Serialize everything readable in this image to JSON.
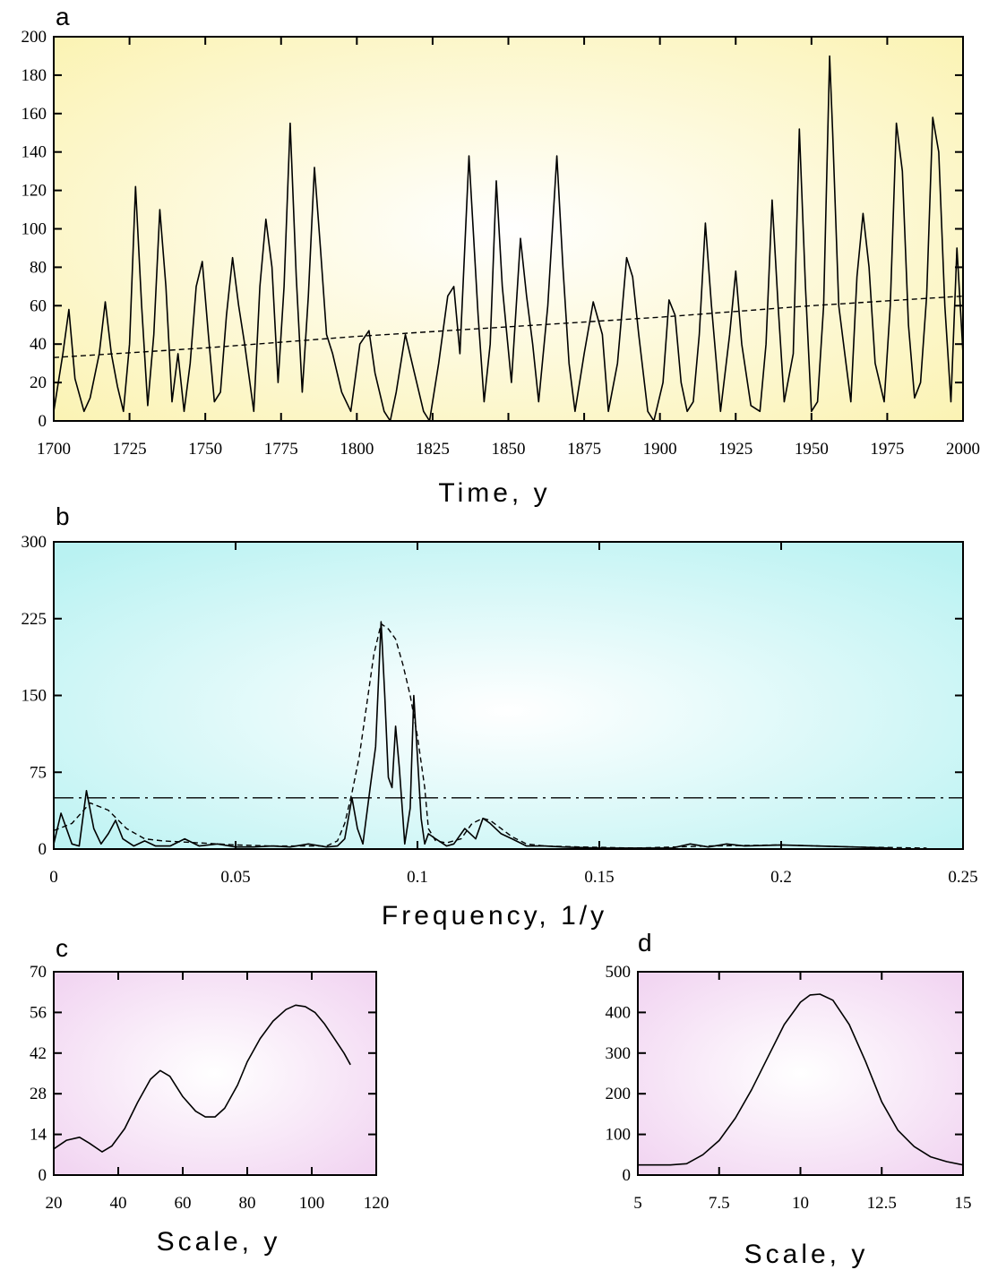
{
  "chart_data": [
    {
      "panel": "a",
      "type": "line",
      "title": "",
      "xlabel": "Time, y",
      "ylabel": "",
      "xlim": [
        1700,
        2000
      ],
      "ylim": [
        0,
        200
      ],
      "xticks": [
        1700,
        1725,
        1750,
        1775,
        1800,
        1825,
        1850,
        1875,
        1900,
        1925,
        1950,
        1975,
        2000
      ],
      "yticks": [
        0,
        20,
        40,
        60,
        80,
        100,
        120,
        140,
        160,
        180,
        200
      ],
      "background": "#fbf3b4",
      "grid": false,
      "series": [
        {
          "style": "solid",
          "x": [
            1700,
            1703,
            1705,
            1707,
            1710,
            1712,
            1715,
            1717,
            1719,
            1721,
            1723,
            1725,
            1727,
            1729,
            1731,
            1733,
            1735,
            1737,
            1739,
            1741,
            1743,
            1745,
            1747,
            1749,
            1751,
            1753,
            1755,
            1757,
            1759,
            1761,
            1763,
            1766,
            1768,
            1770,
            1772,
            1774,
            1776,
            1778,
            1780,
            1782,
            1784,
            1786,
            1788,
            1790,
            1792,
            1795,
            1798,
            1801,
            1804,
            1806,
            1809,
            1811,
            1813,
            1816,
            1819,
            1822,
            1824,
            1827,
            1830,
            1832,
            1834,
            1837,
            1840,
            1842,
            1844,
            1846,
            1848,
            1851,
            1854,
            1856,
            1858,
            1860,
            1863,
            1866,
            1868,
            1870,
            1872,
            1875,
            1878,
            1881,
            1883,
            1886,
            1889,
            1891,
            1893,
            1896,
            1898,
            1901,
            1903,
            1905,
            1907,
            1909,
            1911,
            1913,
            1915,
            1917,
            1920,
            1923,
            1925,
            1927,
            1930,
            1933,
            1935,
            1937,
            1939,
            1941,
            1944,
            1946,
            1948,
            1950,
            1952,
            1954,
            1956,
            1957,
            1959,
            1961,
            1963,
            1965,
            1967,
            1969,
            1971,
            1974,
            1976,
            1978,
            1980,
            1982,
            1984,
            1986,
            1988,
            1990,
            1992,
            1994,
            1996,
            1998,
            2000
          ],
          "y": [
            5,
            35,
            58,
            22,
            5,
            12,
            35,
            62,
            35,
            18,
            5,
            40,
            122,
            60,
            8,
            45,
            110,
            70,
            10,
            35,
            5,
            30,
            70,
            83,
            45,
            10,
            15,
            55,
            85,
            60,
            40,
            5,
            70,
            105,
            80,
            20,
            70,
            155,
            75,
            15,
            65,
            132,
            90,
            45,
            35,
            15,
            5,
            40,
            47,
            25,
            5,
            0,
            15,
            45,
            25,
            5,
            0,
            30,
            65,
            70,
            35,
            138,
            55,
            10,
            40,
            125,
            70,
            20,
            95,
            65,
            40,
            10,
            60,
            138,
            80,
            30,
            5,
            35,
            62,
            45,
            5,
            30,
            85,
            75,
            45,
            5,
            0,
            20,
            63,
            55,
            20,
            5,
            10,
            45,
            103,
            60,
            5,
            45,
            78,
            40,
            8,
            5,
            40,
            115,
            60,
            10,
            35,
            152,
            70,
            5,
            10,
            60,
            190,
            150,
            60,
            35,
            10,
            75,
            108,
            80,
            30,
            10,
            60,
            155,
            130,
            50,
            12,
            20,
            65,
            158,
            140,
            60,
            10,
            90,
            35
          ],
          "name": ""
        },
        {
          "style": "dashed",
          "x": [
            1700,
            1750,
            1800,
            1850,
            1900,
            1950,
            2000
          ],
          "y": [
            33,
            38,
            44,
            49,
            54,
            60,
            65
          ],
          "name": ""
        }
      ]
    },
    {
      "panel": "b",
      "type": "line",
      "title": "",
      "xlabel": "Frequency, 1/y",
      "ylabel": "",
      "xlim": [
        0,
        0.25
      ],
      "ylim": [
        0,
        300
      ],
      "xticks": [
        "0",
        "0.05",
        "0.1",
        "0.15",
        "0.2",
        "0.25"
      ],
      "yticks": [
        0,
        75,
        150,
        225,
        300
      ],
      "background": "#b9f2f2",
      "grid": false,
      "threshold": 50,
      "series": [
        {
          "style": "solid",
          "x": [
            0.0,
            0.002,
            0.005,
            0.007,
            0.009,
            0.011,
            0.013,
            0.015,
            0.017,
            0.019,
            0.022,
            0.025,
            0.028,
            0.032,
            0.036,
            0.04,
            0.045,
            0.05,
            0.055,
            0.06,
            0.065,
            0.07,
            0.075,
            0.078,
            0.08,
            0.082,
            0.0835,
            0.085,
            0.087,
            0.0885,
            0.09,
            0.091,
            0.092,
            0.093,
            0.094,
            0.095,
            0.096,
            0.0965,
            0.098,
            0.099,
            0.1,
            0.101,
            0.102,
            0.103,
            0.105,
            0.108,
            0.11,
            0.113,
            0.116,
            0.118,
            0.12,
            0.123,
            0.126,
            0.13,
            0.135,
            0.14,
            0.15,
            0.16,
            0.17,
            0.175,
            0.18,
            0.185,
            0.19,
            0.2,
            0.21,
            0.22,
            0.23
          ],
          "y": [
            5,
            35,
            5,
            3,
            57,
            20,
            5,
            15,
            28,
            10,
            3,
            8,
            3,
            3,
            10,
            3,
            5,
            2,
            2,
            3,
            2,
            5,
            2,
            3,
            10,
            50,
            20,
            5,
            60,
            100,
            222,
            150,
            70,
            60,
            120,
            80,
            30,
            5,
            40,
            150,
            90,
            30,
            5,
            15,
            10,
            3,
            5,
            20,
            10,
            30,
            25,
            15,
            10,
            3,
            3,
            2,
            1,
            1,
            1,
            5,
            2,
            5,
            3,
            4,
            3,
            2,
            1
          ],
          "name": ""
        },
        {
          "style": "dashed",
          "x": [
            0.0,
            0.005,
            0.01,
            0.015,
            0.02,
            0.025,
            0.03,
            0.04,
            0.05,
            0.06,
            0.07,
            0.075,
            0.078,
            0.08,
            0.082,
            0.084,
            0.086,
            0.088,
            0.09,
            0.092,
            0.094,
            0.096,
            0.098,
            0.1,
            0.102,
            0.103,
            0.105,
            0.108,
            0.112,
            0.115,
            0.118,
            0.12,
            0.123,
            0.126,
            0.13,
            0.135,
            0.145,
            0.16,
            0.18,
            0.2,
            0.22,
            0.24
          ],
          "y": [
            18,
            25,
            45,
            38,
            20,
            10,
            8,
            6,
            4,
            3,
            3,
            3,
            8,
            25,
            55,
            90,
            140,
            190,
            220,
            215,
            205,
            180,
            150,
            110,
            60,
            20,
            8,
            6,
            10,
            25,
            30,
            28,
            20,
            12,
            5,
            3,
            2,
            1,
            3,
            4,
            2,
            1
          ],
          "name": ""
        },
        {
          "style": "dash-dot",
          "x": [
            0,
            0.25
          ],
          "y": [
            50,
            50
          ],
          "name": ""
        }
      ]
    },
    {
      "panel": "c",
      "type": "line",
      "title": "",
      "xlabel": "Scale, y",
      "ylabel": "",
      "xlim": [
        20,
        120
      ],
      "ylim": [
        0,
        70
      ],
      "xticks": [
        20,
        40,
        60,
        80,
        100,
        120
      ],
      "yticks": [
        0,
        14,
        28,
        42,
        56,
        70
      ],
      "background": "#f1d3f1",
      "grid": false,
      "series": [
        {
          "style": "solid",
          "x": [
            20,
            24,
            28,
            31,
            35,
            38,
            42,
            46,
            50,
            53,
            56,
            60,
            64,
            67,
            70,
            73,
            77,
            80,
            84,
            88,
            92,
            95,
            98,
            101,
            104,
            107,
            110,
            112
          ],
          "y": [
            9,
            12,
            13,
            11,
            8,
            10,
            16,
            25,
            33,
            36,
            34,
            27,
            22,
            20,
            20,
            23,
            31,
            39,
            47,
            53,
            57,
            58.5,
            58,
            56,
            52,
            47,
            42,
            38
          ],
          "name": ""
        }
      ]
    },
    {
      "panel": "d",
      "type": "line",
      "title": "",
      "xlabel": "Scale, y",
      "ylabel": "",
      "xlim": [
        5,
        15
      ],
      "ylim": [
        0,
        500
      ],
      "xticks": [
        "5",
        "7.5",
        "10",
        "12.5",
        "15"
      ],
      "yticks": [
        0,
        100,
        200,
        300,
        400,
        500
      ],
      "background": "#f1d3f1",
      "grid": false,
      "series": [
        {
          "style": "solid",
          "x": [
            5,
            5.5,
            6,
            6.5,
            7,
            7.5,
            8,
            8.5,
            9,
            9.5,
            10,
            10.3,
            10.6,
            11,
            11.5,
            12,
            12.5,
            13,
            13.5,
            14,
            14.5,
            15
          ],
          "y": [
            25,
            25,
            25,
            28,
            50,
            85,
            140,
            210,
            290,
            370,
            425,
            443,
            445,
            430,
            370,
            280,
            180,
            110,
            70,
            45,
            33,
            25
          ],
          "name": ""
        }
      ]
    }
  ]
}
